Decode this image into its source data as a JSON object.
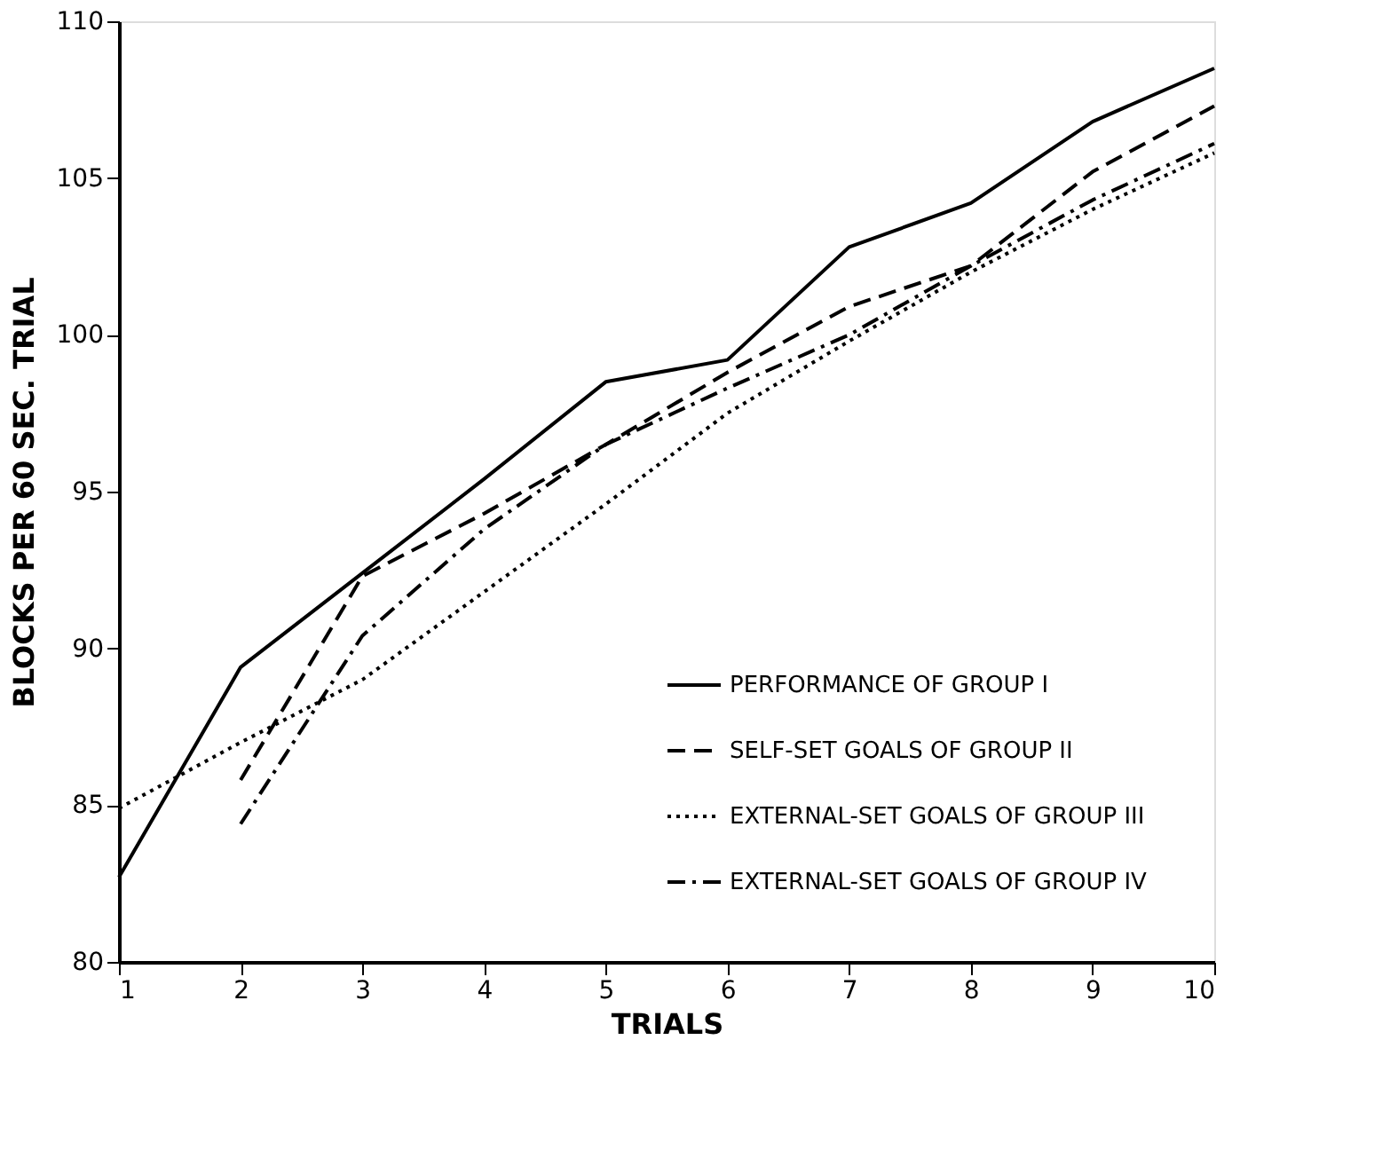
{
  "chart_data": {
    "type": "line",
    "xlabel": "TRIALS",
    "ylabel": "BLOCKS PER 60 SEC. TRIAL",
    "x": [
      1,
      2,
      3,
      4,
      5,
      6,
      7,
      8,
      9,
      10
    ],
    "xlim": [
      1,
      10
    ],
    "xticks": [
      1,
      2,
      3,
      4,
      5,
      6,
      7,
      8,
      9,
      10
    ],
    "ylim": [
      80,
      110
    ],
    "yticks": [
      80,
      85,
      90,
      95,
      100,
      105,
      110
    ],
    "grid": false,
    "legend": "bottom right",
    "marker": "none",
    "series": [
      {
        "name": "PERFORMANCE OF GROUP I",
        "color": "#000000",
        "line_style": "solid",
        "values": [
          82.7,
          89.4,
          92.4,
          95.4,
          98.5,
          99.2,
          102.8,
          104.2,
          106.8,
          108.5
        ]
      },
      {
        "name": "SELF-SET GOALS OF GROUP II",
        "color": "#000000",
        "line_style": "dashed",
        "values": [
          null,
          85.8,
          92.3,
          94.3,
          96.5,
          98.8,
          100.9,
          102.2,
          105.2,
          107.3
        ]
      },
      {
        "name": "EXTERNAL-SET GOALS OF GROUP III",
        "color": "#000000",
        "line_style": "dotted",
        "values": [
          84.9,
          87.0,
          89.0,
          91.8,
          94.6,
          97.5,
          99.8,
          102.0,
          104.0,
          105.8
        ]
      },
      {
        "name": "EXTERNAL-SET GOALS OF GROUP IV",
        "color": "#000000",
        "line_style": "dashdot",
        "values": [
          null,
          84.4,
          90.4,
          93.8,
          96.5,
          98.3,
          100.0,
          102.2,
          104.3,
          106.1
        ]
      }
    ]
  }
}
